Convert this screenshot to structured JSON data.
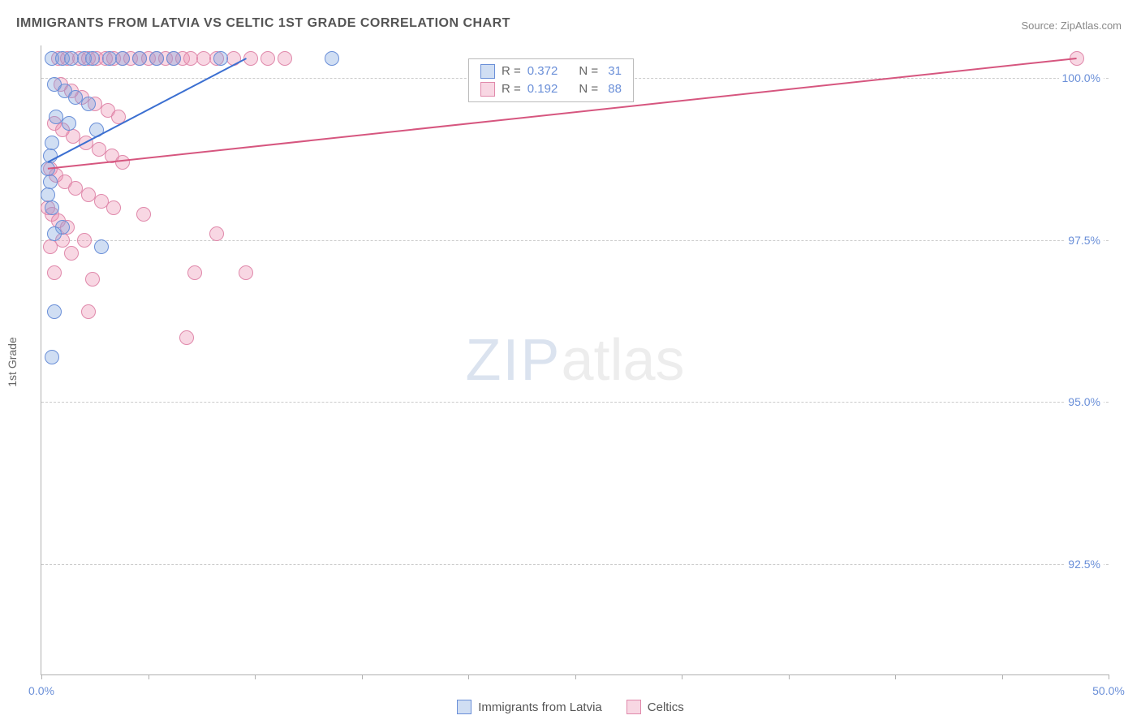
{
  "title": "IMMIGRANTS FROM LATVIA VS CELTIC 1ST GRADE CORRELATION CHART",
  "source": "Source: ZipAtlas.com",
  "ylabel": "1st Grade",
  "watermark": {
    "left": "ZIP",
    "right": "atlas"
  },
  "chart": {
    "type": "scatter",
    "background_color": "#ffffff",
    "grid_color": "#cccccc",
    "axis_color": "#b0b0b0",
    "label_color": "#6a8fd8",
    "xlim": [
      0,
      50
    ],
    "ylim": [
      90.8,
      100.5
    ],
    "xticks": [
      0,
      5,
      10,
      15,
      20,
      25,
      30,
      35,
      40,
      45,
      50
    ],
    "xtick_labels": {
      "0": "0.0%",
      "50": "50.0%"
    },
    "yticks": [
      92.5,
      95.0,
      97.5,
      100.0
    ],
    "ytick_labels": [
      "92.5%",
      "95.0%",
      "97.5%",
      "100.0%"
    ],
    "marker_radius": 9,
    "marker_border_width": 1.5,
    "series": [
      {
        "key": "latvia",
        "label": "Immigrants from Latvia",
        "fill": "rgba(120,160,220,0.35)",
        "stroke": "#6a8fd8",
        "trend_color": "#3b6fd1",
        "r_value": "0.372",
        "n_value": "31",
        "trend": {
          "x1": 0.3,
          "y1": 98.7,
          "x2": 9.6,
          "y2": 100.3
        },
        "points": [
          [
            0.5,
            100.3
          ],
          [
            1.0,
            100.3
          ],
          [
            1.4,
            100.3
          ],
          [
            2.0,
            100.3
          ],
          [
            2.4,
            100.3
          ],
          [
            3.2,
            100.3
          ],
          [
            3.8,
            100.3
          ],
          [
            4.6,
            100.3
          ],
          [
            5.4,
            100.3
          ],
          [
            6.2,
            100.3
          ],
          [
            8.4,
            100.3
          ],
          [
            13.6,
            100.3
          ],
          [
            0.6,
            99.9
          ],
          [
            1.1,
            99.8
          ],
          [
            1.6,
            99.7
          ],
          [
            2.2,
            99.6
          ],
          [
            0.7,
            99.4
          ],
          [
            1.3,
            99.3
          ],
          [
            2.6,
            99.2
          ],
          [
            0.5,
            99.0
          ],
          [
            0.4,
            98.8
          ],
          [
            0.3,
            98.6
          ],
          [
            0.4,
            98.4
          ],
          [
            0.3,
            98.2
          ],
          [
            0.5,
            98.0
          ],
          [
            1.0,
            97.7
          ],
          [
            0.6,
            97.6
          ],
          [
            2.8,
            97.4
          ],
          [
            0.6,
            96.4
          ],
          [
            0.5,
            95.7
          ]
        ]
      },
      {
        "key": "celtics",
        "label": "Celtics",
        "fill": "rgba(235,140,175,0.35)",
        "stroke": "#e089ab",
        "trend_color": "#d6567f",
        "r_value": "0.192",
        "n_value": "88",
        "trend": {
          "x1": 0.3,
          "y1": 98.6,
          "x2": 48.5,
          "y2": 100.3
        },
        "points": [
          [
            0.8,
            100.3
          ],
          [
            1.2,
            100.3
          ],
          [
            1.8,
            100.3
          ],
          [
            2.2,
            100.3
          ],
          [
            2.6,
            100.3
          ],
          [
            3.0,
            100.3
          ],
          [
            3.4,
            100.3
          ],
          [
            3.8,
            100.3
          ],
          [
            4.2,
            100.3
          ],
          [
            4.6,
            100.3
          ],
          [
            5.0,
            100.3
          ],
          [
            5.4,
            100.3
          ],
          [
            5.8,
            100.3
          ],
          [
            6.2,
            100.3
          ],
          [
            6.6,
            100.3
          ],
          [
            7.0,
            100.3
          ],
          [
            7.6,
            100.3
          ],
          [
            8.2,
            100.3
          ],
          [
            9.0,
            100.3
          ],
          [
            9.8,
            100.3
          ],
          [
            10.6,
            100.3
          ],
          [
            11.4,
            100.3
          ],
          [
            48.5,
            100.3
          ],
          [
            0.9,
            99.9
          ],
          [
            1.4,
            99.8
          ],
          [
            1.9,
            99.7
          ],
          [
            2.5,
            99.6
          ],
          [
            3.1,
            99.5
          ],
          [
            3.6,
            99.4
          ],
          [
            0.6,
            99.3
          ],
          [
            1.0,
            99.2
          ],
          [
            1.5,
            99.1
          ],
          [
            2.1,
            99.0
          ],
          [
            2.7,
            98.9
          ],
          [
            3.3,
            98.8
          ],
          [
            3.8,
            98.7
          ],
          [
            0.4,
            98.6
          ],
          [
            0.7,
            98.5
          ],
          [
            1.1,
            98.4
          ],
          [
            1.6,
            98.3
          ],
          [
            2.2,
            98.2
          ],
          [
            2.8,
            98.1
          ],
          [
            3.4,
            98.0
          ],
          [
            0.3,
            98.0
          ],
          [
            0.5,
            97.9
          ],
          [
            0.8,
            97.8
          ],
          [
            1.2,
            97.7
          ],
          [
            4.8,
            97.9
          ],
          [
            1.0,
            97.5
          ],
          [
            2.0,
            97.5
          ],
          [
            0.4,
            97.4
          ],
          [
            1.4,
            97.3
          ],
          [
            8.2,
            97.6
          ],
          [
            0.6,
            97.0
          ],
          [
            2.4,
            96.9
          ],
          [
            7.2,
            97.0
          ],
          [
            9.6,
            97.0
          ],
          [
            2.2,
            96.4
          ],
          [
            6.8,
            96.0
          ]
        ]
      }
    ],
    "bottom_legend": [
      {
        "swatch_fill": "rgba(120,160,220,0.35)",
        "swatch_stroke": "#6a8fd8",
        "label": "Immigrants from Latvia"
      },
      {
        "swatch_fill": "rgba(235,140,175,0.35)",
        "swatch_stroke": "#e089ab",
        "label": "Celtics"
      }
    ],
    "statbox": {
      "top_pct": 2,
      "left_pct": 40,
      "rows": [
        {
          "swatch_fill": "rgba(120,160,220,0.35)",
          "swatch_stroke": "#6a8fd8",
          "r": "0.372",
          "n": "31"
        },
        {
          "swatch_fill": "rgba(235,140,175,0.35)",
          "swatch_stroke": "#e089ab",
          "r": "0.192",
          "n": "88"
        }
      ]
    }
  }
}
